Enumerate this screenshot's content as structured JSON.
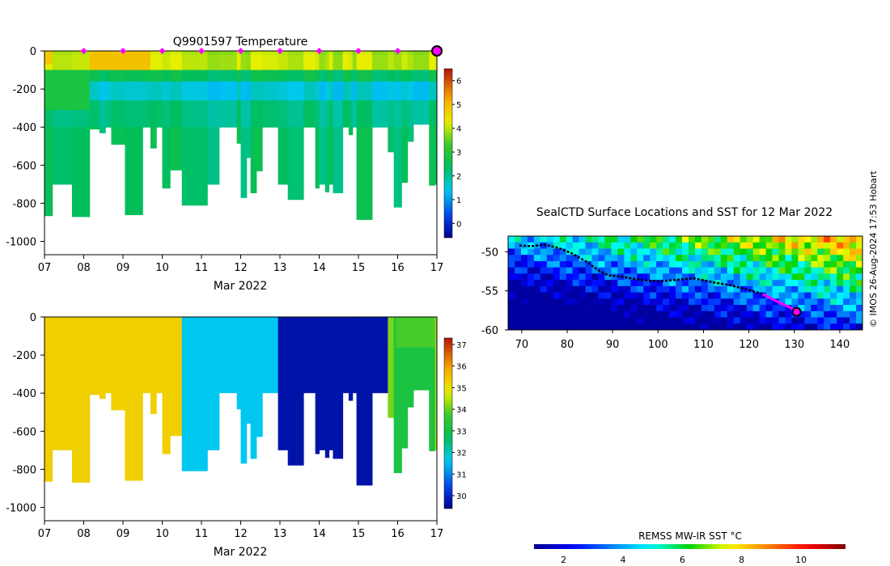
{
  "chart_data": [
    {
      "id": "temperature",
      "type": "heatmap",
      "title": "Q9901597  Temperature",
      "xlabel": "Mar 2022",
      "ylabel": "",
      "xlim": [
        7,
        17
      ],
      "ylim": [
        -1070,
        0
      ],
      "xticks": [
        7,
        8,
        9,
        10,
        11,
        12,
        13,
        14,
        15,
        16,
        17
      ],
      "xtick_labels": [
        "07",
        "08",
        "09",
        "10",
        "11",
        "12",
        "13",
        "14",
        "15",
        "16",
        "17"
      ],
      "yticks": [
        0,
        -200,
        -400,
        -600,
        -800,
        -1000
      ],
      "ytick_labels": [
        "0",
        "-200",
        "-400",
        "-600",
        "-800",
        "-1000"
      ],
      "colorbar": {
        "min": -0.6,
        "max": 6.5,
        "ticks": [
          0,
          1,
          2,
          3,
          4,
          5,
          6
        ],
        "tick_labels": [
          "0",
          "1",
          "2",
          "3",
          "4",
          "5",
          "6"
        ]
      },
      "daily_markers_x": [
        8,
        9,
        10,
        11,
        12,
        13,
        14,
        15,
        16
      ],
      "current_marker_x": 17,
      "marker_color": "#ff00ff",
      "profiles": [
        {
          "x0": 7.0,
          "x1": 7.2,
          "depth": 865
        },
        {
          "x0": 7.2,
          "x1": 7.7,
          "depth": 700
        },
        {
          "x0": 7.7,
          "x1": 8.15,
          "depth": 870
        },
        {
          "x0": 8.15,
          "x1": 8.4,
          "depth": 410
        },
        {
          "x0": 8.4,
          "x1": 8.55,
          "depth": 430
        },
        {
          "x0": 8.55,
          "x1": 8.7,
          "depth": 400
        },
        {
          "x0": 8.7,
          "x1": 9.05,
          "depth": 490
        },
        {
          "x0": 9.05,
          "x1": 9.5,
          "depth": 860
        },
        {
          "x0": 9.5,
          "x1": 9.7,
          "depth": 400
        },
        {
          "x0": 9.7,
          "x1": 9.85,
          "depth": 510
        },
        {
          "x0": 9.85,
          "x1": 10.0,
          "depth": 400
        },
        {
          "x0": 10.0,
          "x1": 10.2,
          "depth": 720
        },
        {
          "x0": 10.2,
          "x1": 10.5,
          "depth": 625
        },
        {
          "x0": 10.5,
          "x1": 11.15,
          "depth": 810
        },
        {
          "x0": 11.15,
          "x1": 11.45,
          "depth": 700
        },
        {
          "x0": 11.45,
          "x1": 11.9,
          "depth": 400
        },
        {
          "x0": 11.9,
          "x1": 12.0,
          "depth": 485
        },
        {
          "x0": 12.0,
          "x1": 12.15,
          "depth": 770
        },
        {
          "x0": 12.15,
          "x1": 12.25,
          "depth": 560
        },
        {
          "x0": 12.25,
          "x1": 12.4,
          "depth": 745
        },
        {
          "x0": 12.4,
          "x1": 12.55,
          "depth": 630
        },
        {
          "x0": 12.55,
          "x1": 12.95,
          "depth": 400
        },
        {
          "x0": 12.95,
          "x1": 13.2,
          "depth": 700
        },
        {
          "x0": 13.2,
          "x1": 13.6,
          "depth": 780
        },
        {
          "x0": 13.6,
          "x1": 13.9,
          "depth": 400
        },
        {
          "x0": 13.9,
          "x1": 14.0,
          "depth": 720
        },
        {
          "x0": 14.0,
          "x1": 14.15,
          "depth": 700
        },
        {
          "x0": 14.15,
          "x1": 14.25,
          "depth": 740
        },
        {
          "x0": 14.25,
          "x1": 14.35,
          "depth": 700
        },
        {
          "x0": 14.35,
          "x1": 14.6,
          "depth": 745
        },
        {
          "x0": 14.6,
          "x1": 14.75,
          "depth": 400
        },
        {
          "x0": 14.75,
          "x1": 14.85,
          "depth": 440
        },
        {
          "x0": 14.85,
          "x1": 14.95,
          "depth": 400
        },
        {
          "x0": 14.95,
          "x1": 15.35,
          "depth": 885
        },
        {
          "x0": 15.35,
          "x1": 15.75,
          "depth": 400
        },
        {
          "x0": 15.75,
          "x1": 15.9,
          "depth": 530
        },
        {
          "x0": 15.9,
          "x1": 16.1,
          "depth": 820
        },
        {
          "x0": 16.1,
          "x1": 16.25,
          "depth": 690
        },
        {
          "x0": 16.25,
          "x1": 16.4,
          "depth": 475
        },
        {
          "x0": 16.4,
          "x1": 16.8,
          "depth": 385
        },
        {
          "x0": 16.8,
          "x1": 16.95,
          "depth": 705
        },
        {
          "x0": 16.95,
          "x1": 17.0,
          "depth": 700
        }
      ],
      "layers": [
        {
          "top": 0,
          "bottom": 20,
          "value": 3.9
        },
        {
          "top": 20,
          "bottom": 100,
          "value": 4.0
        },
        {
          "top": 100,
          "bottom": 160,
          "value": 2.4
        },
        {
          "top": 160,
          "bottom": 260,
          "value": 1.5
        },
        {
          "top": 260,
          "bottom": 400,
          "value": 2.1
        },
        {
          "top": 400,
          "bottom": 1000,
          "value": 2.3
        }
      ],
      "left_patches": [
        {
          "x0": 7.0,
          "x1": 7.2,
          "top": 0,
          "bottom": 70,
          "value": 4.8
        },
        {
          "x0": 7.0,
          "x1": 8.15,
          "top": 100,
          "bottom": 310,
          "value": 2.8
        },
        {
          "x0": 8.15,
          "x1": 9.7,
          "top": 0,
          "bottom": 100,
          "value": 4.9
        }
      ]
    },
    {
      "id": "salinity",
      "type": "heatmap",
      "title": "",
      "xlabel": "Mar 2022",
      "ylabel": "",
      "xlim": [
        7,
        17
      ],
      "ylim": [
        -1070,
        0
      ],
      "xticks": [
        7,
        8,
        9,
        10,
        11,
        12,
        13,
        14,
        15,
        16,
        17
      ],
      "xtick_labels": [
        "07",
        "08",
        "09",
        "10",
        "11",
        "12",
        "13",
        "14",
        "15",
        "16",
        "17"
      ],
      "yticks": [
        0,
        -200,
        -400,
        -600,
        -800,
        -1000
      ],
      "ytick_labels": [
        "0",
        "-200",
        "-400",
        "-600",
        "-800",
        "-1000"
      ],
      "colorbar": {
        "min": 29.4,
        "max": 37.3,
        "ticks": [
          30,
          31,
          32,
          33,
          34,
          35,
          36,
          37
        ],
        "tick_labels": [
          "30",
          "31",
          "32",
          "33",
          "34",
          "35",
          "36",
          "37"
        ]
      },
      "segments": [
        {
          "x0": 7.0,
          "x1": 10.5,
          "value": 35.3
        },
        {
          "x0": 10.5,
          "x1": 12.95,
          "value": 31.6
        },
        {
          "x0": 12.95,
          "x1": 15.75,
          "value": 29.7
        },
        {
          "x0": 15.75,
          "x1": 15.95,
          "value": 34.1
        },
        {
          "x0": 15.95,
          "x1": 16.95,
          "value": 33.2
        },
        {
          "x0": 16.95,
          "x1": 17.0,
          "value": 34.3
        }
      ],
      "upper_band": {
        "x0": 15.95,
        "x1": 16.95,
        "top": 0,
        "bottom": 160,
        "value": 34.0
      }
    },
    {
      "id": "sst_map",
      "type": "heatmap",
      "title": "SealCTD Surface Locations and SST for 12 Mar 2022",
      "xlim": [
        67,
        145
      ],
      "ylim": [
        -60,
        -48
      ],
      "xticks": [
        70,
        80,
        90,
        100,
        110,
        120,
        130,
        140
      ],
      "xtick_labels": [
        "70",
        "80",
        "90",
        "100",
        "110",
        "120",
        "130",
        "140"
      ],
      "yticks": [
        -50,
        -55,
        -60
      ],
      "ytick_labels": [
        "-50",
        "-55",
        "-60"
      ],
      "colorbar": {
        "label": "REMSS MW-IR SST °C",
        "min": 1,
        "max": 11.5,
        "ticks": [
          2,
          4,
          6,
          8,
          10
        ],
        "tick_labels": [
          "2",
          "4",
          "6",
          "8",
          "10"
        ]
      },
      "track_black": [
        [
          69.5,
          -49.2
        ],
        [
          72,
          -49.3
        ],
        [
          75,
          -49.1
        ],
        [
          78,
          -49.5
        ],
        [
          81,
          -50.2
        ],
        [
          84,
          -51.2
        ],
        [
          87,
          -52.4
        ],
        [
          89,
          -53.0
        ],
        [
          92,
          -53.2
        ],
        [
          96,
          -53.6
        ],
        [
          100,
          -53.8
        ],
        [
          104,
          -53.6
        ],
        [
          108,
          -53.4
        ],
        [
          112,
          -53.9
        ],
        [
          116,
          -54.3
        ],
        [
          120,
          -54.9
        ],
        [
          123,
          -55.4
        ]
      ],
      "track_magenta": [
        [
          123,
          -55.4
        ],
        [
          125,
          -56.0
        ],
        [
          127,
          -56.6
        ],
        [
          129,
          -57.1
        ],
        [
          130.5,
          -57.7
        ]
      ],
      "current_position": [
        130.5,
        -57.7
      ]
    }
  ],
  "watermark": "© IMOS 26-Aug-2024 17:53 Hobart"
}
